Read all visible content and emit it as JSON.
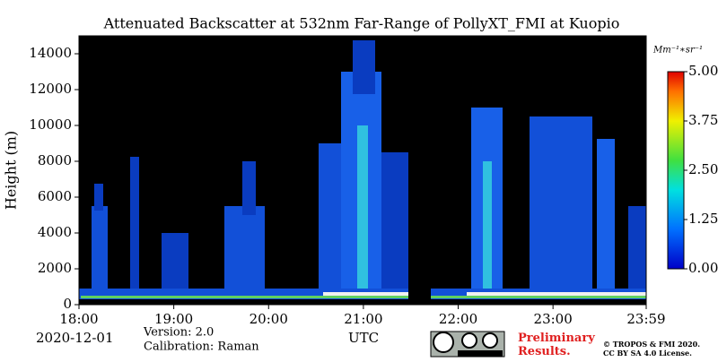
{
  "chart_data": {
    "type": "heatmap",
    "title": "Attenuated Backscatter at 532nm Far-Range of PollyXT_FMI at Kuopio",
    "ylabel": "Height (m)",
    "xlabel": "UTC",
    "date": "2020-12-01",
    "version": "Version: 2.0",
    "calibration": "Calibration: Raman",
    "preliminary": "Preliminary Results.",
    "copyright": "© TROPOS & FMI 2020.",
    "license": "CC BY SA 4.0 License.",
    "colorbar_label": "Mm⁻¹∗sr⁻¹",
    "xlim": [
      18,
      23.983
    ],
    "xticks": [
      {
        "value": 18,
        "label": "18:00"
      },
      {
        "value": 19,
        "label": "19:00"
      },
      {
        "value": 20,
        "label": "20:00"
      },
      {
        "value": 21,
        "label": "21:00"
      },
      {
        "value": 22,
        "label": "22:00"
      },
      {
        "value": 23,
        "label": "23:00"
      },
      {
        "value": 23.983,
        "label": "23:59"
      }
    ],
    "ylim": [
      0,
      15000
    ],
    "yticks": [
      0,
      2000,
      4000,
      6000,
      8000,
      10000,
      12000,
      14000
    ],
    "clim": [
      0,
      5
    ],
    "cticks": [
      {
        "value": 0,
        "label": "0.00"
      },
      {
        "value": 1.25,
        "label": "1.25"
      },
      {
        "value": 2.5,
        "label": "2.50"
      },
      {
        "value": 3.75,
        "label": "3.75"
      },
      {
        "value": 5,
        "label": "5.00"
      }
    ]
  }
}
